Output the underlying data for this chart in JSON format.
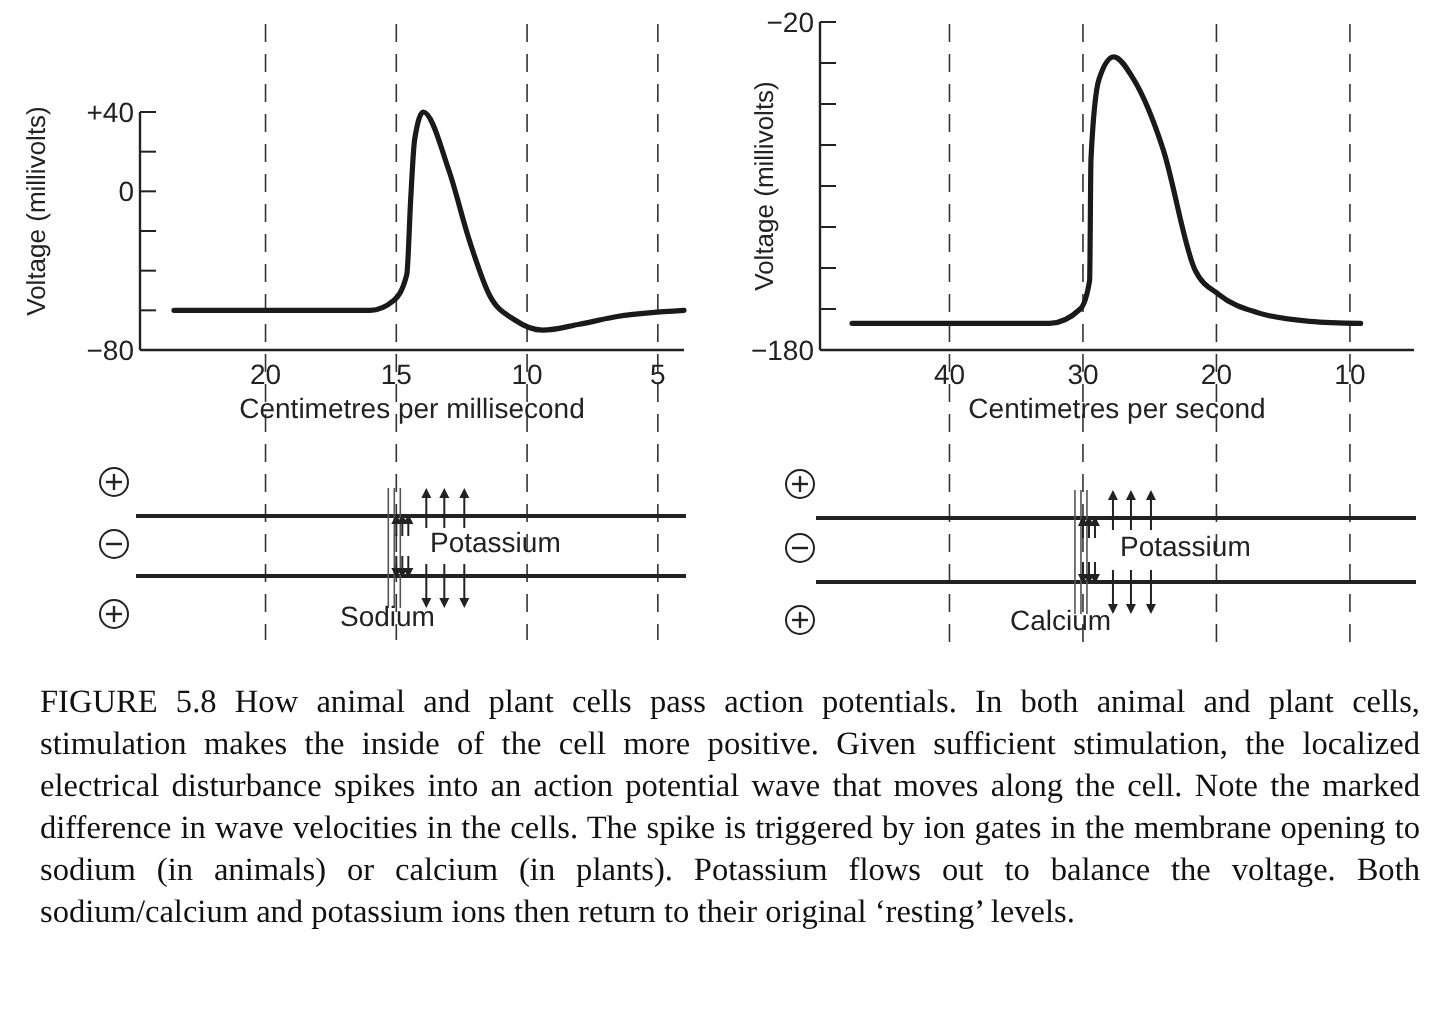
{
  "chart_data": [
    {
      "type": "line",
      "xlabel": "Centimetres per millisecond",
      "ylabel": "Voltage (millivolts)",
      "xlim": [
        24.8,
        4.0
      ],
      "xticks": [
        20,
        15,
        10,
        5
      ],
      "ylim": [
        -80,
        40
      ],
      "yticks": [
        {
          "value": 40,
          "label": "+40"
        },
        {
          "value": 20,
          "label": null
        },
        0,
        {
          "value": -20,
          "label": null
        },
        {
          "value": -40,
          "label": null
        },
        {
          "value": -60,
          "label": null
        },
        {
          "value": -80,
          "label": "−80"
        }
      ],
      "grid": "x",
      "line_style": "solid",
      "annotations": [
        "Potassium",
        "Sodium"
      ],
      "series": [
        {
          "color": "#1a1a1a",
          "x": [
            23.5,
            20,
            16,
            15.1,
            14.6,
            14.45,
            14.3,
            13.97,
            13.0,
            12.2,
            11.45,
            10.45,
            9.4,
            8,
            6.5,
            4.0
          ],
          "values": [
            -60,
            -60,
            -60,
            -55,
            -42,
            -4,
            26,
            40,
            11,
            -25,
            -52,
            -65,
            -70,
            -67,
            -63,
            -60
          ]
        }
      ]
    },
    {
      "type": "line",
      "xlabel": "Centimetres per second",
      "ylabel": "Voltage (millivolts)",
      "xlim": [
        49.7,
        5.2
      ],
      "xticks": [
        40,
        30,
        20,
        10
      ],
      "ylim": [
        -180,
        -20
      ],
      "yticks": [
        {
          "value": -20,
          "label": "−20"
        },
        {
          "value": -40,
          "label": null
        },
        {
          "value": -60,
          "label": null
        },
        {
          "value": -80,
          "label": null
        },
        {
          "value": -100,
          "label": null
        },
        {
          "value": -120,
          "label": null
        },
        {
          "value": -140,
          "label": null
        },
        {
          "value": -160,
          "label": null
        },
        {
          "value": -180,
          "label": "−180"
        }
      ],
      "grid": "x",
      "line_style": "solid",
      "annotations": [
        "Potassium",
        "Calcium",
        "FIGURE 5.8 How animal and plant cells pass action potentials. In both animal and plant cells, stimulation makes the inside of the cell more positive. Given sufficient stimulation, the localized electrical disturbance spikes into an action potential wave that moves along the cell. Note the marked difference in wave velocities in the cells. The spike is triggered by ion gates in the membrane opening to sodium (in animals) or calcium (in plants). Potassium flows out to balance the voltage. Both sodium/calcium and potassium ions then return to their original ‘resting’ levels."
      ],
      "series": [
        {
          "color": "#1a1a1a",
          "x": [
            47.3,
            40,
            32.5,
            30.2,
            29.5,
            29.4,
            28.8,
            27.7,
            26.2,
            24,
            21.6,
            19.8,
            16.8,
            13,
            9.2
          ],
          "values": [
            -167,
            -167,
            -167,
            -160,
            -146,
            -87,
            -48,
            -37,
            -48,
            -82,
            -141,
            -153,
            -162,
            -166,
            -167
          ]
        }
      ]
    }
  ]
}
